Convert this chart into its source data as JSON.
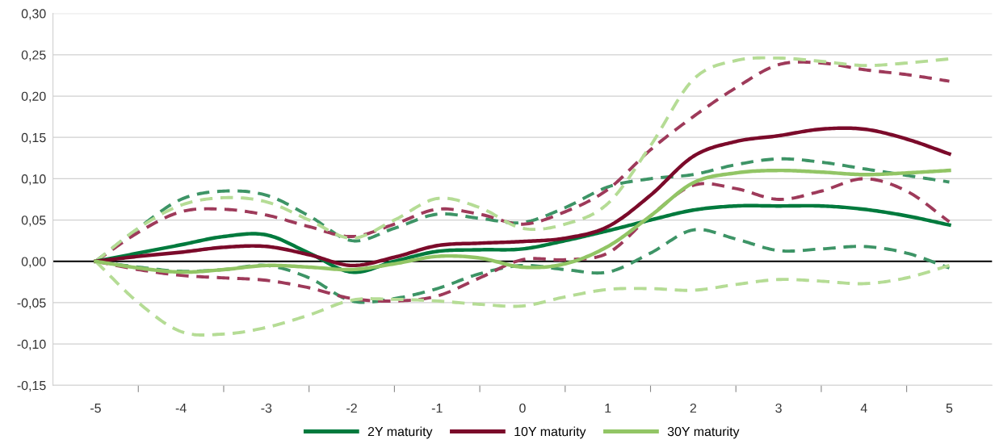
{
  "chart_data": {
    "type": "line",
    "x": [
      -5,
      -4.5,
      -4,
      -3.5,
      -3,
      -2.5,
      -2,
      -1.5,
      -1,
      -0.5,
      0,
      0.5,
      1,
      1.5,
      2,
      2.5,
      3,
      3.5,
      4,
      4.5,
      5
    ],
    "series": [
      {
        "line_style": "dashed",
        "color": "#3d9466",
        "values": [
          0,
          0.04,
          0.075,
          0.085,
          0.08,
          0.055,
          0.025,
          0.04,
          0.057,
          0.052,
          0.047,
          0.065,
          0.09,
          0.1,
          0.105,
          0.117,
          0.124,
          0.12,
          0.112,
          0.104,
          0.096
        ]
      },
      {
        "line_style": "dashed",
        "color": "#3d9466",
        "values": [
          0,
          -0.007,
          -0.012,
          -0.01,
          -0.005,
          -0.02,
          -0.048,
          -0.045,
          -0.033,
          -0.015,
          -0.005,
          -0.01,
          -0.013,
          0.01,
          0.038,
          0.027,
          0.013,
          0.015,
          0.018,
          0.01,
          -0.008
        ]
      },
      {
        "line_style": "dashed",
        "color": "#9e3a5a",
        "values": [
          0,
          0.035,
          0.06,
          0.063,
          0.056,
          0.042,
          0.03,
          0.045,
          0.063,
          0.057,
          0.045,
          0.06,
          0.087,
          0.135,
          0.175,
          0.21,
          0.238,
          0.24,
          0.232,
          0.226,
          0.218
        ]
      },
      {
        "line_style": "dashed",
        "color": "#9e3a5a",
        "values": [
          0,
          -0.01,
          -0.017,
          -0.02,
          -0.023,
          -0.032,
          -0.045,
          -0.048,
          -0.042,
          -0.02,
          0.002,
          0.002,
          0.01,
          0.055,
          0.092,
          0.088,
          0.075,
          0.085,
          0.1,
          0.085,
          0.048
        ]
      },
      {
        "line_style": "dashed",
        "color": "#b5dc95",
        "values": [
          0,
          0.04,
          0.068,
          0.077,
          0.072,
          0.05,
          0.028,
          0.05,
          0.076,
          0.065,
          0.04,
          0.045,
          0.07,
          0.14,
          0.22,
          0.243,
          0.246,
          0.242,
          0.237,
          0.24,
          0.245
        ]
      },
      {
        "line_style": "dashed",
        "color": "#b5dc95",
        "values": [
          0,
          -0.05,
          -0.085,
          -0.088,
          -0.08,
          -0.065,
          -0.047,
          -0.046,
          -0.048,
          -0.052,
          -0.054,
          -0.043,
          -0.034,
          -0.033,
          -0.035,
          -0.028,
          -0.022,
          -0.024,
          -0.027,
          -0.02,
          -0.005
        ]
      },
      {
        "name": "2Y maturity",
        "line_style": "solid",
        "color": "#007a3d",
        "values": [
          0,
          0.01,
          0.02,
          0.03,
          0.032,
          0.01,
          -0.013,
          0,
          0.012,
          0.014,
          0.015,
          0.025,
          0.037,
          0.05,
          0.062,
          0.067,
          0.067,
          0.067,
          0.063,
          0.055,
          0.044
        ]
      },
      {
        "name": "10Y maturity",
        "line_style": "solid",
        "color": "#7b0a2a",
        "values": [
          0,
          0.006,
          0.011,
          0.017,
          0.018,
          0.008,
          -0.005,
          0.005,
          0.019,
          0.022,
          0.024,
          0.028,
          0.042,
          0.08,
          0.127,
          0.145,
          0.152,
          0.16,
          0.16,
          0.148,
          0.13
        ]
      },
      {
        "name": "30Y maturity",
        "line_style": "solid",
        "color": "#92c565",
        "values": [
          0,
          -0.008,
          -0.013,
          -0.01,
          -0.005,
          -0.007,
          -0.01,
          -0.003,
          0.006,
          0.004,
          -0.007,
          -0.003,
          0.018,
          0.055,
          0.095,
          0.107,
          0.11,
          0.108,
          0.105,
          0.107,
          0.11
        ]
      }
    ],
    "xlim": [
      -5.5,
      5.5
    ],
    "xticks": [
      -5,
      {
        "value": -4.5,
        "label": null
      },
      -4,
      {
        "value": -3.5,
        "label": null
      },
      -3,
      {
        "value": -2.5,
        "label": null
      },
      -2,
      {
        "value": -1.5,
        "label": null
      },
      -1,
      {
        "value": -0.5,
        "label": null
      },
      0,
      {
        "value": 0.5,
        "label": null
      },
      1,
      {
        "value": 1.5,
        "label": null
      },
      2,
      {
        "value": 2.5,
        "label": null
      },
      3,
      {
        "value": 3.5,
        "label": null
      },
      4,
      {
        "value": 4.5,
        "label": null
      },
      5
    ],
    "ylim": [
      -0.15,
      0.3
    ],
    "yticks": [
      {
        "value": -0.15,
        "label": "-0,15"
      },
      {
        "value": -0.1,
        "label": "-0,10"
      },
      {
        "value": -0.05,
        "label": "-0,05"
      },
      {
        "value": 0,
        "label": "0,00"
      },
      {
        "value": 0.05,
        "label": "0,05"
      },
      {
        "value": 0.1,
        "label": "0,10"
      },
      {
        "value": 0.15,
        "label": "0,15"
      },
      {
        "value": 0.2,
        "label": "0,20"
      },
      {
        "value": 0.25,
        "label": "0,25"
      },
      {
        "value": 0.3,
        "label": "0,30"
      }
    ],
    "ref_lines": [
      {
        "axis": "y",
        "value": 0,
        "color": "#000000",
        "line_style": "solid"
      }
    ],
    "grid": "y",
    "legend": "bottom",
    "marker": "none"
  }
}
